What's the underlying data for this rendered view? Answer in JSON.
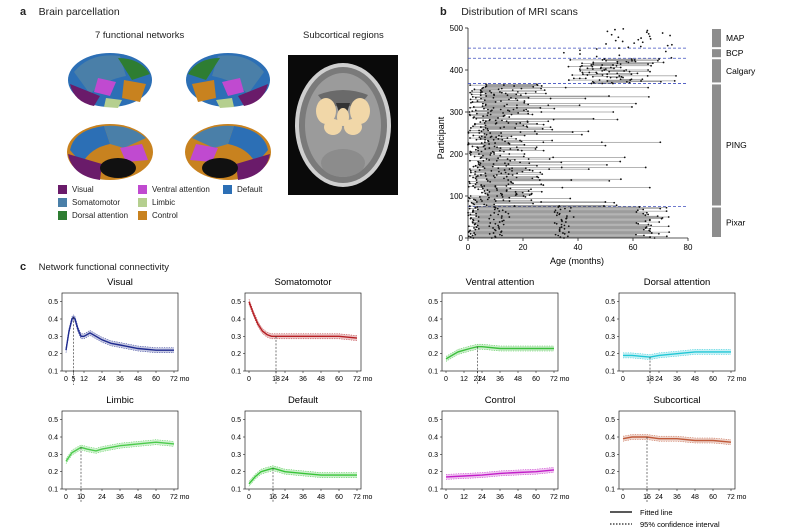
{
  "panel_a": {
    "label": "a",
    "title": "Brain parcellation",
    "subtitle_left": "7 functional networks",
    "subtitle_right": "Subcortical regions",
    "legend": [
      {
        "name": "Visual",
        "color": "#6a1b6a"
      },
      {
        "name": "Somatomotor",
        "color": "#4a7fa8"
      },
      {
        "name": "Dorsal attention",
        "color": "#2e7d32"
      },
      {
        "name": "Ventral attention",
        "color": "#c04ad0"
      },
      {
        "name": "Limbic",
        "color": "#b5cf8f"
      },
      {
        "name": "Control",
        "color": "#c8821f"
      },
      {
        "name": "Default",
        "color": "#2c6fb5"
      }
    ]
  },
  "panel_b": {
    "label": "b",
    "title": "Distribution of MRI scans",
    "cohorts": [
      {
        "name": "Pixar"
      },
      {
        "name": "PING"
      },
      {
        "name": "Calgary"
      },
      {
        "name": "BCP"
      },
      {
        "name": "MAP"
      }
    ]
  },
  "panel_c": {
    "label": "c",
    "title": "Network functional connectivity",
    "legend_fitted": "Fitted line",
    "legend_ci": "95% confidence interval"
  },
  "chart_data": [
    {
      "type": "scatter",
      "title": "Distribution of MRI scans",
      "xlabel": "Age (months)",
      "ylabel": "Participant",
      "xlim": [
        0,
        80
      ],
      "ylim": [
        0,
        500
      ],
      "xticks": [
        0,
        20,
        40,
        60,
        80
      ],
      "yticks": [
        0,
        100,
        200,
        300,
        400,
        500
      ],
      "cohort_boundaries": [
        75,
        368,
        428,
        452
      ],
      "cohort_ranges": [
        [
          0,
          75
        ],
        [
          75,
          368
        ],
        [
          368,
          428
        ],
        [
          428,
          452
        ],
        [
          452,
          500
        ]
      ]
    },
    {
      "type": "line",
      "title": "Visual",
      "color": "#1f2b8f",
      "peak_x": 5,
      "xticks": [
        "0",
        "5",
        "12",
        "24",
        "36",
        "48",
        "60",
        "72 mo"
      ],
      "yticks": [
        "0.1",
        "0.2",
        "0.3",
        "0.4",
        "0.5"
      ],
      "x": [
        0,
        2,
        4,
        5,
        6,
        8,
        10,
        12,
        16,
        20,
        24,
        30,
        36,
        48,
        60,
        72
      ],
      "y": [
        0.22,
        0.33,
        0.4,
        0.41,
        0.4,
        0.34,
        0.3,
        0.3,
        0.32,
        0.3,
        0.28,
        0.26,
        0.25,
        0.23,
        0.22,
        0.22
      ]
    },
    {
      "type": "line",
      "title": "Somatomotor",
      "color": "#b51e23",
      "peak_x": 18,
      "xticks": [
        "0",
        "18",
        "24",
        "36",
        "48",
        "60",
        "72 mo"
      ],
      "yticks": [
        "0.1",
        "0.2",
        "0.3",
        "0.4",
        "0.5"
      ],
      "x": [
        0,
        3,
        6,
        9,
        12,
        15,
        18,
        24,
        36,
        48,
        60,
        72
      ],
      "y": [
        0.5,
        0.43,
        0.37,
        0.33,
        0.31,
        0.3,
        0.3,
        0.3,
        0.3,
        0.3,
        0.3,
        0.29
      ]
    },
    {
      "type": "line",
      "title": "Ventral attention",
      "color": "#3cc03c",
      "peak_x": 21,
      "xticks": [
        "0",
        "12",
        "21",
        "24",
        "36",
        "48",
        "60",
        "72 mo"
      ],
      "yticks": [
        "0.1",
        "0.2",
        "0.3",
        "0.4",
        "0.5"
      ],
      "x": [
        0,
        4,
        8,
        12,
        16,
        21,
        24,
        36,
        48,
        60,
        72
      ],
      "y": [
        0.17,
        0.19,
        0.21,
        0.22,
        0.23,
        0.24,
        0.24,
        0.23,
        0.23,
        0.23,
        0.23
      ]
    },
    {
      "type": "line",
      "title": "Dorsal attention",
      "color": "#22c7d6",
      "peak_x": 18,
      "xticks": [
        "0",
        "18",
        "24",
        "36",
        "48",
        "60",
        "72 mo"
      ],
      "yticks": [
        "0.1",
        "0.2",
        "0.3",
        "0.4",
        "0.5"
      ],
      "x": [
        0,
        6,
        12,
        18,
        24,
        36,
        48,
        60,
        72
      ],
      "y": [
        0.19,
        0.19,
        0.185,
        0.18,
        0.19,
        0.2,
        0.21,
        0.21,
        0.21
      ]
    },
    {
      "type": "line",
      "title": "Limbic",
      "color": "#4ccb4c",
      "peak_x": 10,
      "xticks": [
        "0",
        "10",
        "24",
        "36",
        "48",
        "60",
        "72 mo"
      ],
      "yticks": [
        "0.1",
        "0.2",
        "0.3",
        "0.4",
        "0.5"
      ],
      "x": [
        0,
        4,
        8,
        10,
        14,
        20,
        24,
        36,
        48,
        60,
        72
      ],
      "y": [
        0.26,
        0.31,
        0.33,
        0.34,
        0.33,
        0.32,
        0.33,
        0.35,
        0.36,
        0.37,
        0.36
      ]
    },
    {
      "type": "line",
      "title": "Default",
      "color": "#38c438",
      "peak_x": 16,
      "xticks": [
        "0",
        "16",
        "24",
        "36",
        "48",
        "60",
        "72 mo"
      ],
      "yticks": [
        "0.1",
        "0.2",
        "0.3",
        "0.4",
        "0.5"
      ],
      "x": [
        0,
        4,
        8,
        12,
        16,
        20,
        24,
        36,
        48,
        60,
        72
      ],
      "y": [
        0.13,
        0.17,
        0.2,
        0.21,
        0.22,
        0.21,
        0.2,
        0.19,
        0.18,
        0.18,
        0.18
      ]
    },
    {
      "type": "line",
      "title": "Control",
      "color": "#c21fc8",
      "peak_x": null,
      "xticks": [
        "0",
        "12",
        "24",
        "36",
        "48",
        "60",
        "72 mo"
      ],
      "yticks": [
        "0.1",
        "0.2",
        "0.3",
        "0.4",
        "0.5"
      ],
      "x": [
        0,
        12,
        24,
        36,
        48,
        60,
        72
      ],
      "y": [
        0.17,
        0.175,
        0.18,
        0.19,
        0.195,
        0.2,
        0.21
      ]
    },
    {
      "type": "line",
      "title": "Subcortical",
      "color": "#c05a3a",
      "peak_x": 16,
      "xticks": [
        "0",
        "16",
        "24",
        "36",
        "48",
        "60",
        "72 mo"
      ],
      "yticks": [
        "0.1",
        "0.2",
        "0.3",
        "0.4",
        "0.5"
      ],
      "x": [
        0,
        6,
        12,
        16,
        24,
        36,
        48,
        60,
        72
      ],
      "y": [
        0.39,
        0.4,
        0.4,
        0.4,
        0.39,
        0.39,
        0.38,
        0.38,
        0.37
      ]
    }
  ]
}
